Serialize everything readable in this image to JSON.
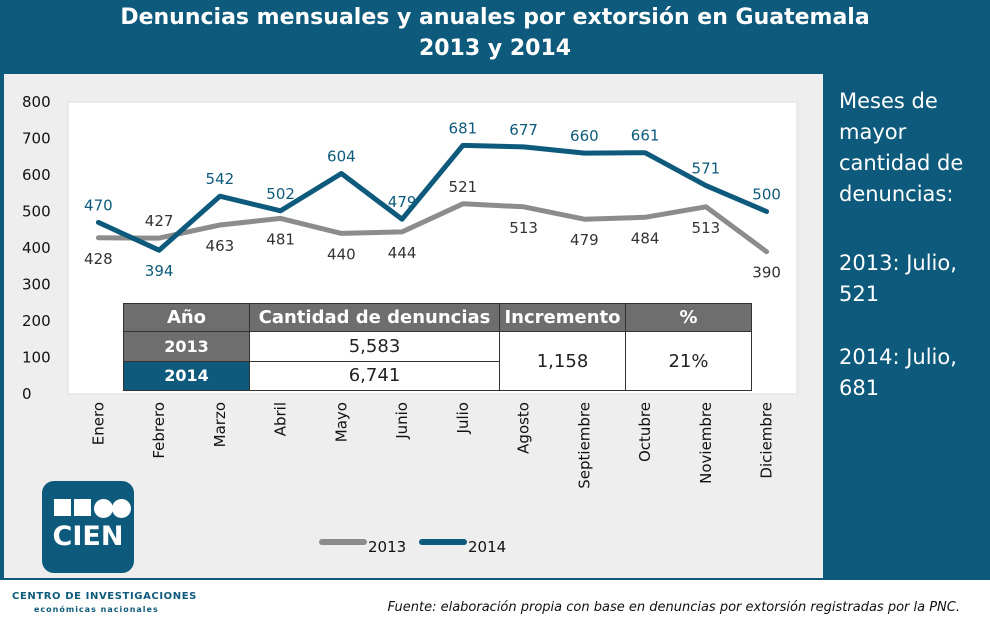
{
  "title_line1": "Denuncias mensuales y anuales por extorsión en Guatemala",
  "title_line2": "2013 y 2014",
  "side_panel": {
    "heading": "Meses de mayor cantidad de denuncias:",
    "item_2013": "2013: Julio, 521",
    "item_2014": "2014: Julio, 681"
  },
  "summary_table": {
    "headers": [
      "Año",
      "Cantidad de denuncias",
      "Incremento",
      "%"
    ],
    "rows": [
      {
        "year": "2013",
        "count": "5,583"
      },
      {
        "year": "2014",
        "count": "6,741"
      }
    ],
    "increment": "1,158",
    "percent": "21%"
  },
  "logo": {
    "text": "CIEN"
  },
  "org": {
    "line1": "CENTRO DE INVESTIGACIONES",
    "line2": "económicas nacionales"
  },
  "source": "Fuente: elaboración propia con base en denuncias por extorsión registradas por la PNC.",
  "colors": {
    "series_2013": "#8c8c8c",
    "series_2014": "#0e5a7c",
    "accent": "#0e5a7c"
  },
  "chart_data": {
    "type": "line",
    "title": "Denuncias mensuales y anuales por extorsión en Guatemala 2013 y 2014",
    "xlabel": "",
    "ylabel": "",
    "categories": [
      "Enero",
      "Febrero",
      "Marzo",
      "Abril",
      "Mayo",
      "Junio",
      "Julio",
      "Agosto",
      "Septiembre",
      "Octubre",
      "Noviembre",
      "Diciembre"
    ],
    "series": [
      {
        "name": "2013",
        "values": [
          428,
          427,
          463,
          481,
          440,
          444,
          521,
          513,
          479,
          484,
          513,
          390
        ]
      },
      {
        "name": "2014",
        "values": [
          470,
          394,
          542,
          502,
          604,
          479,
          681,
          677,
          660,
          661,
          571,
          500
        ]
      }
    ],
    "ylim": [
      0,
      800
    ],
    "yticks": [
      0,
      100,
      200,
      300,
      400,
      500,
      600,
      700,
      800
    ],
    "grid": false,
    "legend": "bottom"
  }
}
